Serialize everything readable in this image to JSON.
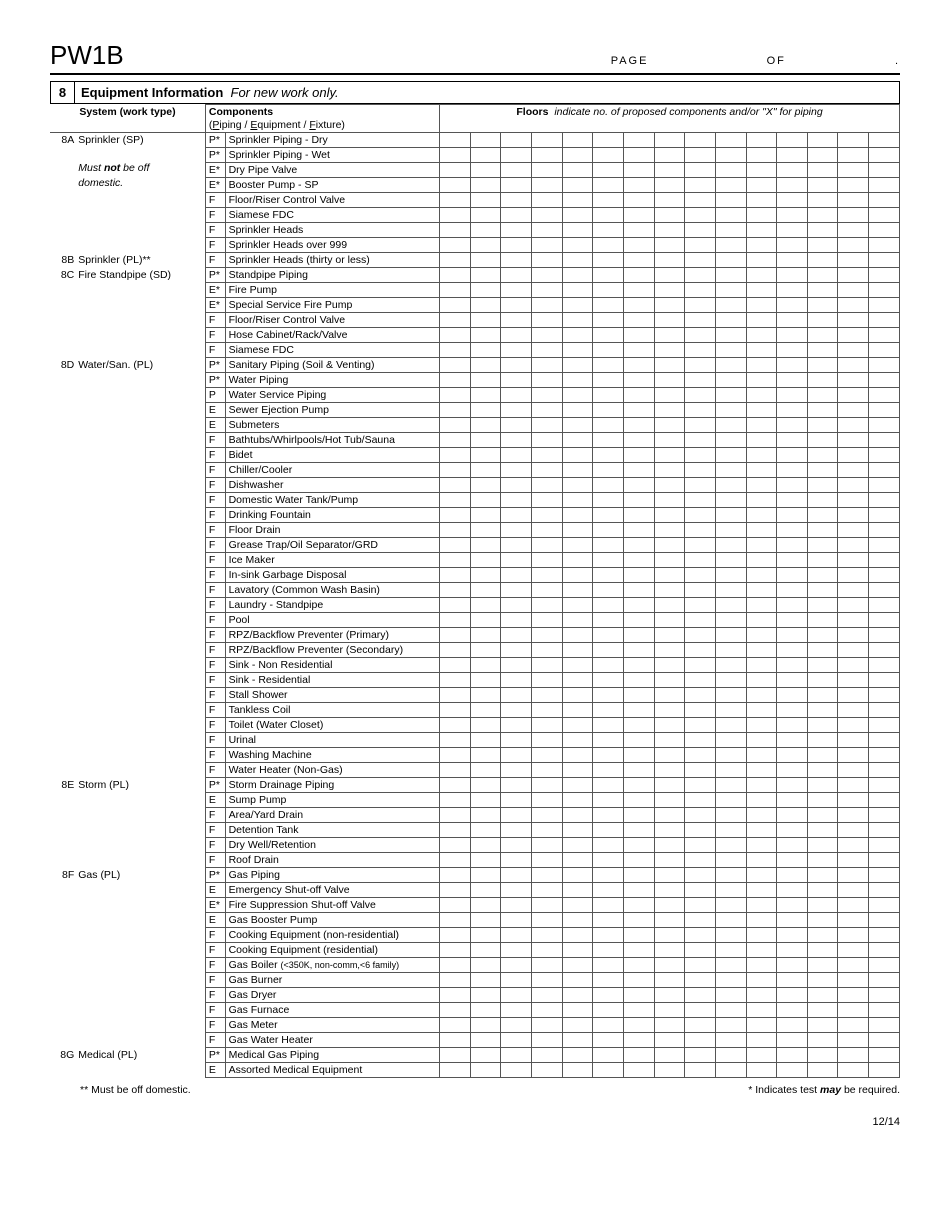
{
  "form_code": "PW1B",
  "page_label": "PAGE",
  "of_label": "OF",
  "section_number": "8",
  "section_title": "Equipment Information",
  "section_subtitle": "For new work only.",
  "col_system": "System (work type)",
  "col_components_title": "Components",
  "col_components_sub_p": "P",
  "col_components_sub_iping": "iping / ",
  "col_components_sub_e": "E",
  "col_components_sub_quipment": "quipment / ",
  "col_components_sub_f": "F",
  "col_components_sub_ixture": "ixture)",
  "col_floors_label": "Floors",
  "col_floors_hint": "indicate no. of proposed components and/or \"X\" for piping",
  "floor_columns": 15,
  "systems": [
    {
      "code": "8A",
      "name": "Sprinkler (SP)",
      "note_lines": [
        "",
        "Must <b>not</b> be off",
        "domestic."
      ],
      "rows": [
        {
          "t": "P*",
          "c": "Sprinkler Piping - Dry"
        },
        {
          "t": "P*",
          "c": "Sprinkler Piping - Wet"
        },
        {
          "t": "E*",
          "c": "Dry Pipe Valve"
        },
        {
          "t": "E*",
          "c": "Booster Pump - SP"
        },
        {
          "t": "F",
          "c": "Floor/Riser Control Valve"
        },
        {
          "t": "F",
          "c": "Siamese FDC"
        },
        {
          "t": "F",
          "c": "Sprinkler Heads"
        },
        {
          "t": "F",
          "c": "Sprinkler Heads over 999"
        }
      ]
    },
    {
      "code": "8B",
      "name": "Sprinkler (PL)**",
      "rows": [
        {
          "t": "F",
          "c": "Sprinkler Heads (thirty or less)"
        }
      ]
    },
    {
      "code": "8C",
      "name": "Fire Standpipe (SD)",
      "rows": [
        {
          "t": "P*",
          "c": "Standpipe Piping"
        },
        {
          "t": "E*",
          "c": "Fire Pump"
        },
        {
          "t": "E*",
          "c": "Special Service Fire Pump"
        },
        {
          "t": "F",
          "c": "Floor/Riser Control Valve"
        },
        {
          "t": "F",
          "c": "Hose Cabinet/Rack/Valve"
        },
        {
          "t": "F",
          "c": "Siamese FDC"
        }
      ]
    },
    {
      "code": "8D",
      "name": "Water/San. (PL)",
      "rows": [
        {
          "t": "P*",
          "c": "Sanitary Piping (Soil & Venting)"
        },
        {
          "t": "P*",
          "c": "Water Piping"
        },
        {
          "t": "P",
          "c": "Water Service Piping"
        },
        {
          "t": "E",
          "c": "Sewer Ejection Pump"
        },
        {
          "t": "E",
          "c": "Submeters"
        },
        {
          "t": "F",
          "c": "Bathtubs/Whirlpools/Hot Tub/Sauna"
        },
        {
          "t": "F",
          "c": "Bidet"
        },
        {
          "t": "F",
          "c": "Chiller/Cooler"
        },
        {
          "t": "F",
          "c": "Dishwasher"
        },
        {
          "t": "F",
          "c": "Domestic Water Tank/Pump"
        },
        {
          "t": "F",
          "c": "Drinking Fountain"
        },
        {
          "t": "F",
          "c": "Floor Drain"
        },
        {
          "t": "F",
          "c": "Grease Trap/Oil Separator/GRD"
        },
        {
          "t": "F",
          "c": "Ice Maker"
        },
        {
          "t": "F",
          "c": "In-sink Garbage Disposal"
        },
        {
          "t": "F",
          "c": "Lavatory (Common Wash Basin)"
        },
        {
          "t": "F",
          "c": "Laundry - Standpipe"
        },
        {
          "t": "F",
          "c": "Pool"
        },
        {
          "t": "F",
          "c": "RPZ/Backflow Preventer (Primary)"
        },
        {
          "t": "F",
          "c": "RPZ/Backflow Preventer (Secondary)"
        },
        {
          "t": "F",
          "c": "Sink - Non Residential"
        },
        {
          "t": "F",
          "c": "Sink - Residential"
        },
        {
          "t": "F",
          "c": "Stall Shower"
        },
        {
          "t": "F",
          "c": "Tankless Coil"
        },
        {
          "t": "F",
          "c": "Toilet (Water Closet)"
        },
        {
          "t": "F",
          "c": "Urinal"
        },
        {
          "t": "F",
          "c": "Washing Machine"
        },
        {
          "t": "F",
          "c": "Water Heater (Non-Gas)"
        }
      ]
    },
    {
      "code": "8E",
      "name": "Storm (PL)",
      "rows": [
        {
          "t": "P*",
          "c": "Storm Drainage Piping"
        },
        {
          "t": "E",
          "c": "Sump Pump"
        },
        {
          "t": "F",
          "c": "Area/Yard Drain"
        },
        {
          "t": "F",
          "c": "Detention Tank"
        },
        {
          "t": "F",
          "c": "Dry Well/Retention"
        },
        {
          "t": "F",
          "c": "Roof Drain"
        }
      ]
    },
    {
      "code": "8F",
      "name": "Gas (PL)",
      "rows": [
        {
          "t": "P*",
          "c": "Gas Piping"
        },
        {
          "t": "E",
          "c": "Emergency Shut-off Valve"
        },
        {
          "t": "E*",
          "c": "Fire Suppression Shut-off Valve"
        },
        {
          "t": "E",
          "c": "Gas Booster Pump"
        },
        {
          "t": "F",
          "c": "Cooking Equipment (non-residential)"
        },
        {
          "t": "F",
          "c": "Cooking Equipment (residential)"
        },
        {
          "t": "F",
          "c": "Gas Boiler ",
          "small": "(<350K, non-comm,<6 family)"
        },
        {
          "t": "F",
          "c": "Gas Burner"
        },
        {
          "t": "F",
          "c": "Gas Dryer"
        },
        {
          "t": "F",
          "c": "Gas Furnace"
        },
        {
          "t": "F",
          "c": "Gas Meter"
        },
        {
          "t": "F",
          "c": "Gas Water Heater"
        }
      ]
    },
    {
      "code": "8G",
      "name": "Medical (PL)",
      "rows": [
        {
          "t": "P*",
          "c": "Medical Gas Piping"
        },
        {
          "t": "E",
          "c": "Assorted Medical Equipment"
        }
      ]
    }
  ],
  "footnote_left": "** Must be off domestic.",
  "footnote_right_pre": "* Indicates test ",
  "footnote_right_em": "may",
  "footnote_right_post": " be required.",
  "page_number": "12/14"
}
